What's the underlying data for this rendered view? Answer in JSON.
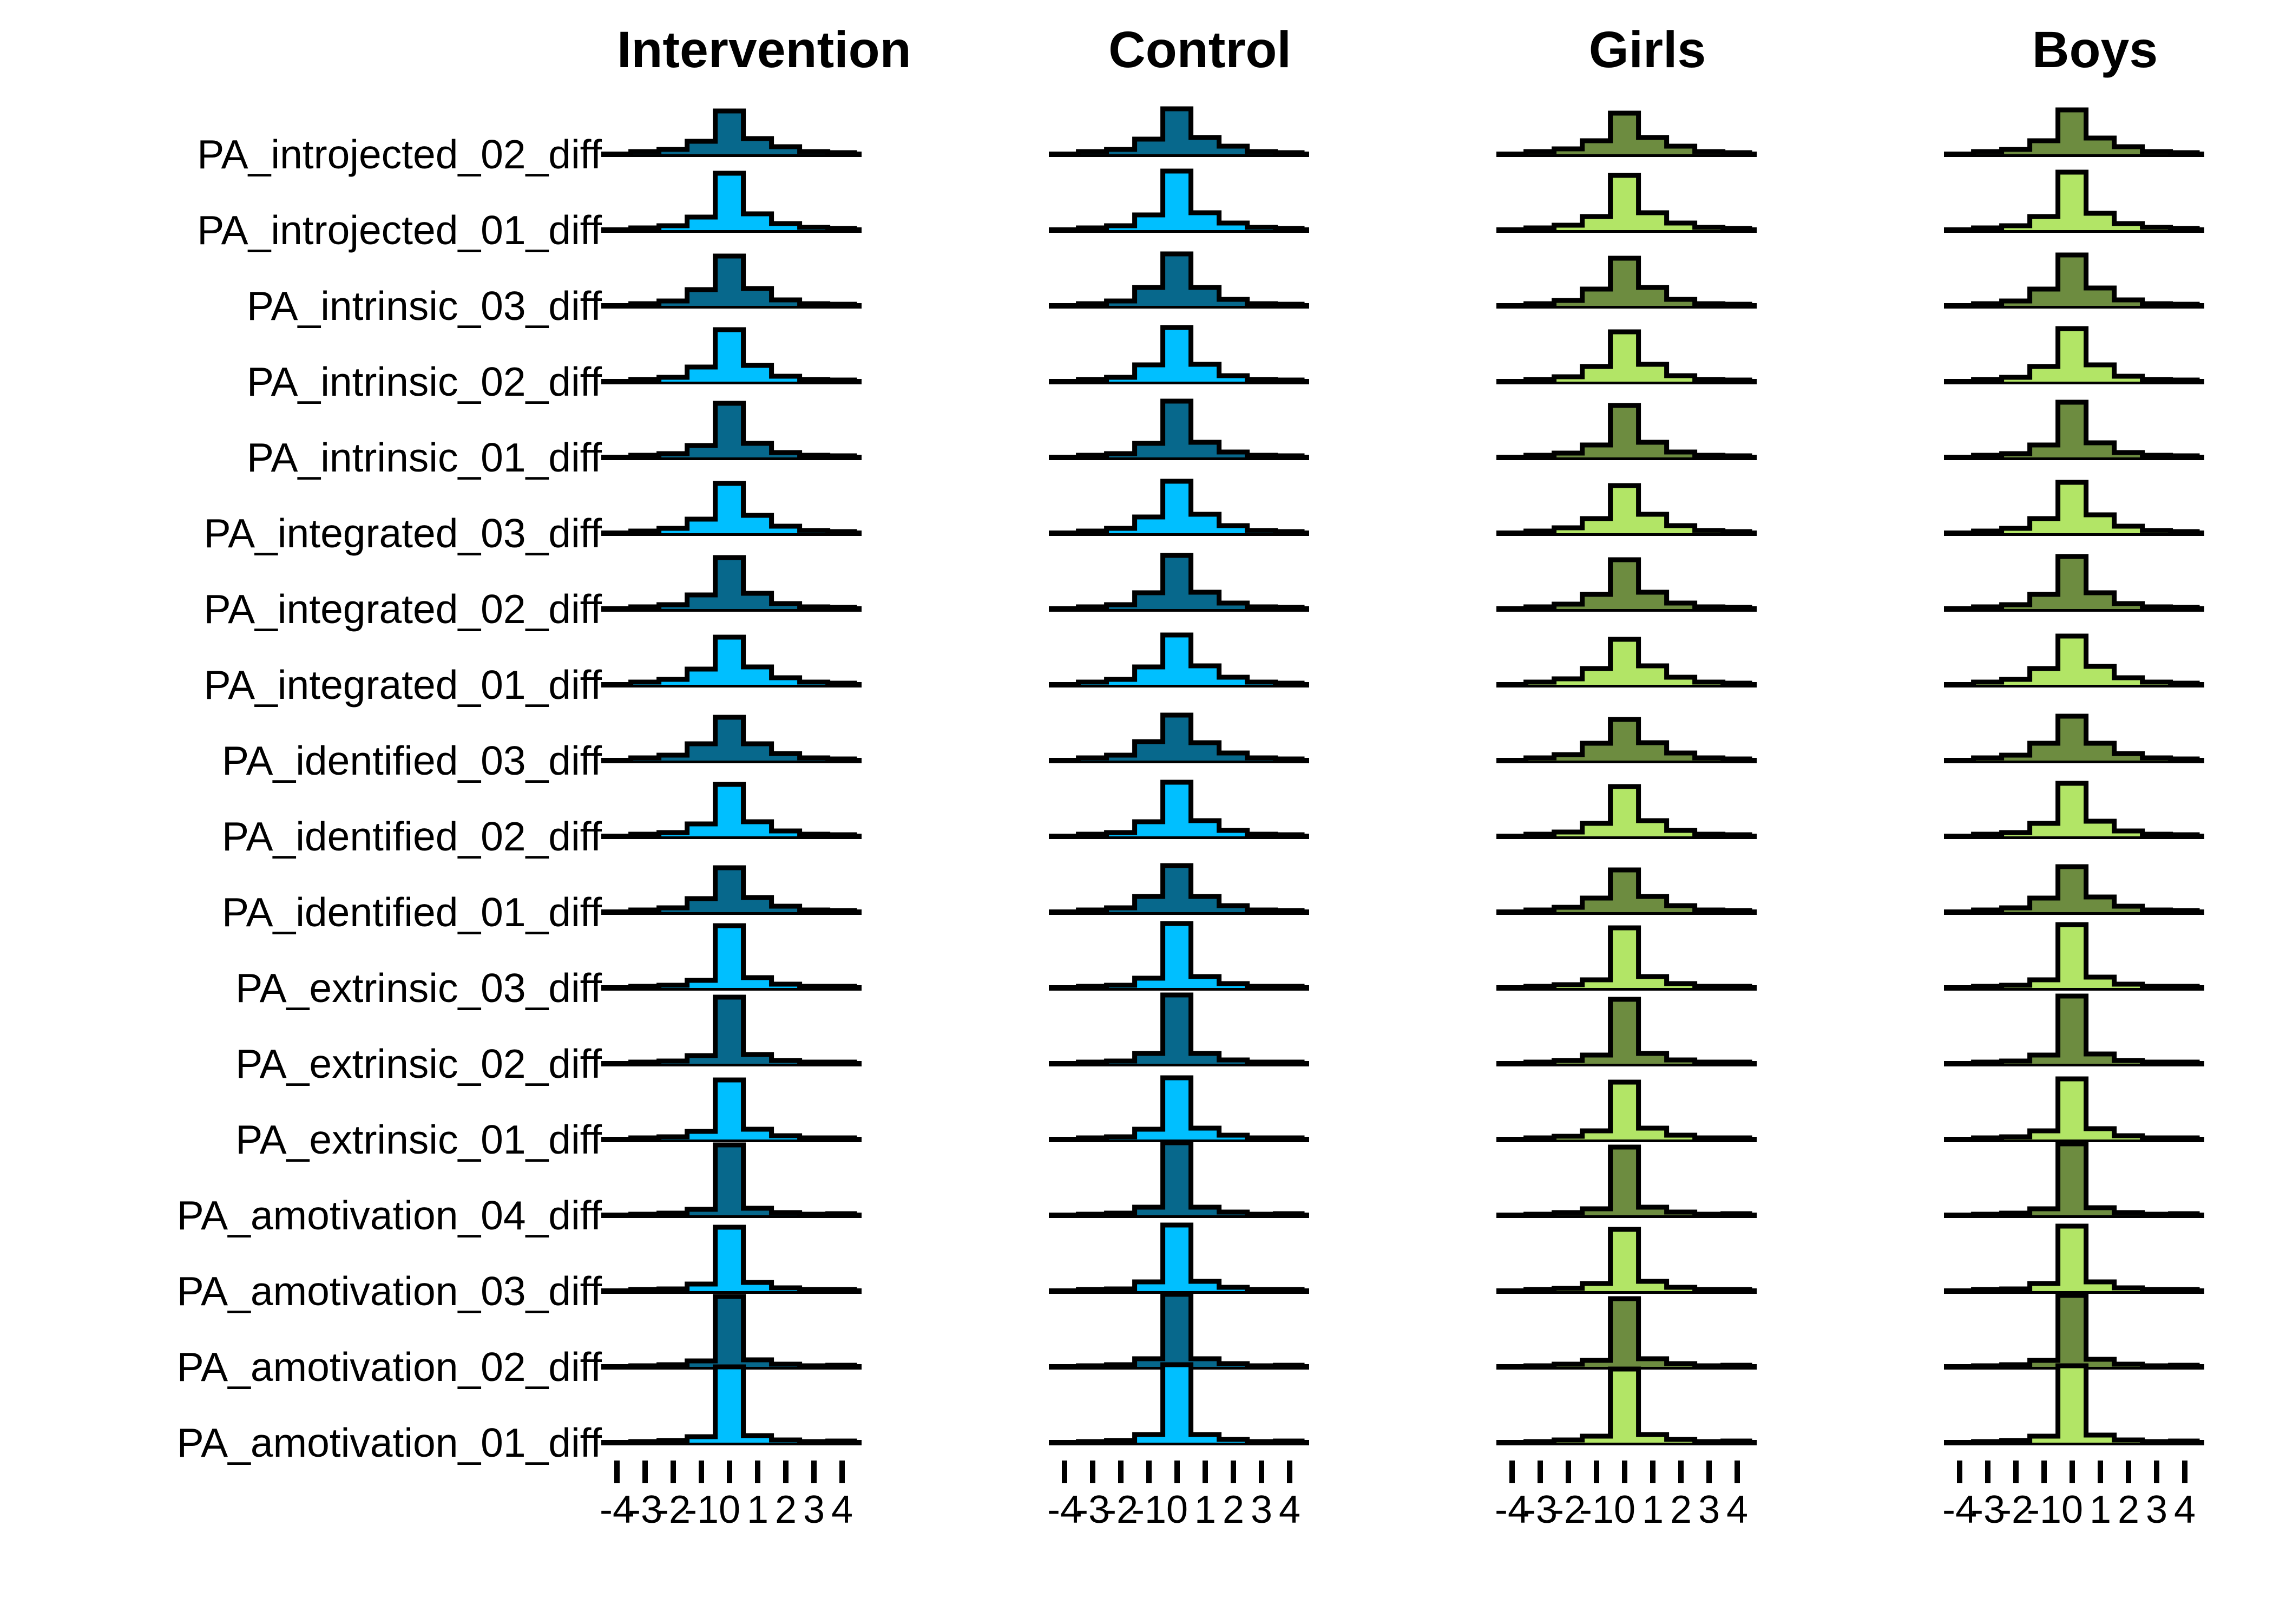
{
  "figure": {
    "background": "#ffffff",
    "outline_color": "#000000",
    "text_color": "#000000"
  },
  "columns": [
    {
      "id": "intervention",
      "label": "Intervention",
      "dark": "#07688C",
      "light": "#00BFFF"
    },
    {
      "id": "control",
      "label": "Control",
      "dark": "#07688C",
      "light": "#00BFFF"
    },
    {
      "id": "girls",
      "label": "Girls",
      "dark": "#6D8C40",
      "light": "#B2E566"
    },
    {
      "id": "boys",
      "label": "Boys",
      "dark": "#6D8C40",
      "light": "#B2E566"
    }
  ],
  "rows": [
    {
      "label": "PA_introjected_02_diff",
      "shade": "dark"
    },
    {
      "label": "PA_introjected_01_diff",
      "shade": "light"
    },
    {
      "label": "PA_intrinsic_03_diff",
      "shade": "dark"
    },
    {
      "label": "PA_intrinsic_02_diff",
      "shade": "light"
    },
    {
      "label": "PA_intrinsic_01_diff",
      "shade": "dark"
    },
    {
      "label": "PA_integrated_03_diff",
      "shade": "light"
    },
    {
      "label": "PA_integrated_02_diff",
      "shade": "dark"
    },
    {
      "label": "PA_integrated_01_diff",
      "shade": "light"
    },
    {
      "label": "PA_identified_03_diff",
      "shade": "dark"
    },
    {
      "label": "PA_identified_02_diff",
      "shade": "light"
    },
    {
      "label": "PA_identified_01_diff",
      "shade": "dark"
    },
    {
      "label": "PA_extrinsic_03_diff",
      "shade": "light"
    },
    {
      "label": "PA_extrinsic_02_diff",
      "shade": "dark"
    },
    {
      "label": "PA_extrinsic_01_diff",
      "shade": "light"
    },
    {
      "label": "PA_amotivation_04_diff",
      "shade": "dark"
    },
    {
      "label": "PA_amotivation_03_diff",
      "shade": "light"
    },
    {
      "label": "PA_amotivation_02_diff",
      "shade": "dark"
    },
    {
      "label": "PA_amotivation_01_diff",
      "shade": "light"
    }
  ],
  "axis": {
    "min": -4,
    "max": 4,
    "tick_labels": [
      "-4",
      "-3",
      "-2",
      "-1",
      "0",
      "1",
      "2",
      "3",
      "4"
    ]
  },
  "chart_data": {
    "type": "histogram-ridgeline",
    "title": "",
    "xlabel": "",
    "facet_titles": [
      "Intervention",
      "Control",
      "Girls",
      "Boys"
    ],
    "x_range": [
      -4,
      4
    ],
    "bin_centers": [
      -3,
      -2,
      -1,
      0,
      1,
      2,
      3
    ],
    "bin_width": 1,
    "tail_height": 3,
    "series": [
      {
        "name": "Intervention",
        "rows": [
          [
            5,
            9,
            24,
            80,
            29,
            14,
            5
          ],
          [
            4,
            8,
            24,
            105,
            30,
            12,
            5
          ],
          [
            4,
            9,
            30,
            92,
            32,
            11,
            4
          ],
          [
            4,
            8,
            27,
            96,
            30,
            10,
            4
          ],
          [
            4,
            7,
            22,
            100,
            26,
            9,
            4
          ],
          [
            4,
            9,
            26,
            92,
            33,
            13,
            5
          ],
          [
            4,
            8,
            26,
            95,
            29,
            10,
            4
          ],
          [
            5,
            10,
            29,
            88,
            33,
            13,
            5
          ],
          [
            5,
            10,
            31,
            80,
            31,
            13,
            5
          ],
          [
            4,
            7,
            23,
            96,
            27,
            10,
            4
          ],
          [
            4,
            8,
            25,
            82,
            27,
            11,
            4
          ],
          [
            3,
            5,
            14,
            115,
            19,
            7,
            3
          ],
          [
            3,
            5,
            15,
            123,
            17,
            6,
            3
          ],
          [
            3,
            5,
            15,
            110,
            19,
            7,
            3
          ],
          [
            2,
            4,
            11,
            130,
            13,
            5,
            2
          ],
          [
            3,
            4,
            13,
            118,
            16,
            6,
            3
          ],
          [
            2,
            4,
            11,
            130,
            13,
            5,
            2
          ],
          [
            2,
            4,
            11,
            140,
            13,
            5,
            2
          ]
        ]
      },
      {
        "name": "Control",
        "rows": [
          [
            5,
            9,
            28,
            84,
            31,
            15,
            5
          ],
          [
            4,
            8,
            28,
            109,
            32,
            13,
            5
          ],
          [
            4,
            9,
            34,
            96,
            34,
            12,
            4
          ],
          [
            4,
            8,
            31,
            100,
            32,
            11,
            4
          ],
          [
            4,
            7,
            26,
            104,
            28,
            10,
            4
          ],
          [
            4,
            9,
            30,
            96,
            35,
            14,
            5
          ],
          [
            4,
            8,
            30,
            99,
            31,
            11,
            4
          ],
          [
            5,
            10,
            33,
            92,
            35,
            14,
            5
          ],
          [
            5,
            10,
            35,
            84,
            33,
            14,
            5
          ],
          [
            4,
            7,
            27,
            100,
            29,
            11,
            4
          ],
          [
            4,
            8,
            29,
            86,
            29,
            12,
            4
          ],
          [
            3,
            5,
            18,
            119,
            21,
            8,
            3
          ],
          [
            3,
            5,
            19,
            127,
            19,
            7,
            3
          ],
          [
            3,
            5,
            19,
            114,
            21,
            8,
            3
          ],
          [
            2,
            4,
            15,
            134,
            15,
            6,
            2
          ],
          [
            3,
            4,
            17,
            122,
            18,
            7,
            3
          ],
          [
            2,
            4,
            15,
            134,
            15,
            6,
            2
          ],
          [
            2,
            4,
            15,
            144,
            15,
            6,
            2
          ]
        ]
      },
      {
        "name": "Girls",
        "rows": [
          [
            5,
            10,
            25,
            76,
            31,
            15,
            5
          ],
          [
            4,
            9,
            25,
            101,
            32,
            13,
            5
          ],
          [
            4,
            10,
            31,
            88,
            34,
            12,
            4
          ],
          [
            4,
            9,
            28,
            92,
            32,
            11,
            4
          ],
          [
            4,
            8,
            23,
            96,
            28,
            10,
            4
          ],
          [
            4,
            10,
            27,
            88,
            35,
            14,
            5
          ],
          [
            4,
            9,
            27,
            91,
            31,
            11,
            4
          ],
          [
            5,
            11,
            30,
            84,
            35,
            14,
            5
          ],
          [
            5,
            11,
            32,
            76,
            33,
            14,
            5
          ],
          [
            4,
            8,
            24,
            92,
            29,
            11,
            4
          ],
          [
            4,
            9,
            26,
            78,
            29,
            12,
            4
          ],
          [
            3,
            6,
            15,
            111,
            21,
            8,
            3
          ],
          [
            3,
            6,
            16,
            119,
            19,
            7,
            3
          ],
          [
            3,
            6,
            16,
            106,
            21,
            8,
            3
          ],
          [
            2,
            5,
            12,
            126,
            15,
            6,
            2
          ],
          [
            3,
            5,
            14,
            114,
            18,
            7,
            3
          ],
          [
            2,
            5,
            12,
            126,
            15,
            6,
            2
          ],
          [
            2,
            5,
            12,
            136,
            15,
            6,
            2
          ]
        ]
      },
      {
        "name": "Boys",
        "rows": [
          [
            5,
            9,
            25,
            82,
            30,
            14,
            5
          ],
          [
            4,
            8,
            25,
            107,
            31,
            12,
            5
          ],
          [
            4,
            9,
            31,
            94,
            33,
            11,
            4
          ],
          [
            4,
            8,
            28,
            98,
            31,
            10,
            4
          ],
          [
            4,
            7,
            23,
            102,
            27,
            9,
            4
          ],
          [
            4,
            9,
            27,
            94,
            34,
            13,
            5
          ],
          [
            4,
            8,
            27,
            97,
            30,
            10,
            4
          ],
          [
            5,
            10,
            30,
            90,
            34,
            13,
            5
          ],
          [
            5,
            10,
            32,
            82,
            32,
            13,
            5
          ],
          [
            4,
            7,
            24,
            98,
            28,
            10,
            4
          ],
          [
            4,
            8,
            26,
            84,
            28,
            11,
            4
          ],
          [
            3,
            5,
            15,
            117,
            20,
            7,
            3
          ],
          [
            3,
            5,
            16,
            125,
            18,
            6,
            3
          ],
          [
            3,
            5,
            16,
            112,
            20,
            7,
            3
          ],
          [
            2,
            4,
            12,
            132,
            14,
            5,
            2
          ],
          [
            3,
            4,
            14,
            120,
            17,
            6,
            3
          ],
          [
            2,
            4,
            12,
            132,
            14,
            5,
            2
          ],
          [
            2,
            4,
            12,
            142,
            14,
            5,
            2
          ]
        ]
      }
    ]
  }
}
